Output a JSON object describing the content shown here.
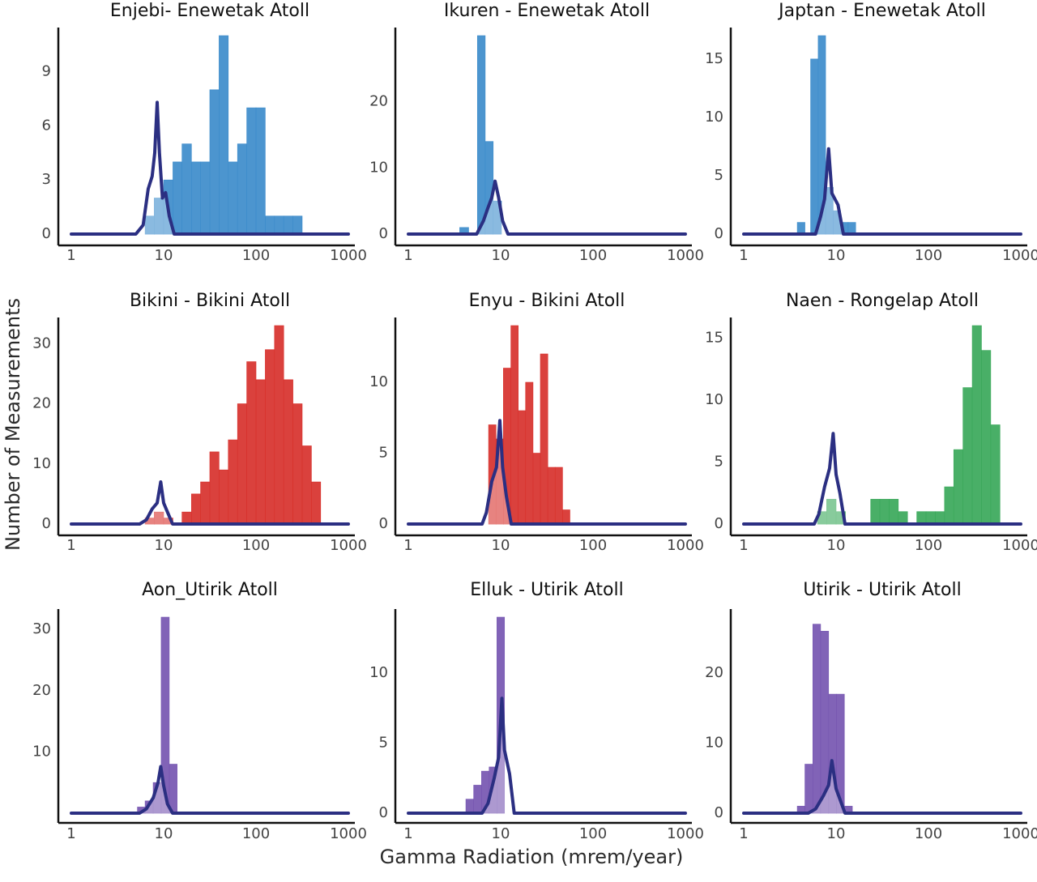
{
  "figure": {
    "ylabel": "Number of Measurements",
    "xlabel": "Gamma Radiation (mrem/year)",
    "line_color": "#2b2f82",
    "palette": {
      "enewetak": "#3d8ccb",
      "bikini": "#d7312c",
      "rongelap": "#3aa85a",
      "utirik": "#7656b1"
    }
  },
  "chart_data": [
    {
      "type": "bar",
      "title": "Enjebi- Enewetak Atoll",
      "color": "#3d8ccb",
      "xscale": "log",
      "xlim": [
        1,
        1000
      ],
      "xticks": [
        "1",
        "10",
        "100",
        "1000"
      ],
      "yticks": [
        0,
        3,
        6,
        9
      ],
      "ylim": [
        0,
        11
      ],
      "bins": [
        [
          6.3,
          7.9,
          1
        ],
        [
          7.9,
          10,
          2
        ],
        [
          10,
          12.6,
          3
        ],
        [
          12.6,
          15.8,
          4
        ],
        [
          15.8,
          20,
          5
        ],
        [
          20,
          25.1,
          4
        ],
        [
          25.1,
          31.6,
          4
        ],
        [
          31.6,
          39.8,
          8
        ],
        [
          39.8,
          50.1,
          11
        ],
        [
          50.1,
          63.1,
          4
        ],
        [
          63.1,
          79.4,
          5
        ],
        [
          79.4,
          100,
          7
        ],
        [
          100,
          125.9,
          7
        ],
        [
          125.9,
          158.5,
          1
        ],
        [
          158.5,
          199.5,
          1
        ],
        [
          199.5,
          251.2,
          1
        ],
        [
          251.2,
          316.2,
          1
        ]
      ],
      "background_curve": [
        [
          1,
          0
        ],
        [
          5,
          0
        ],
        [
          6,
          0.5
        ],
        [
          6.8,
          2.5
        ],
        [
          7.5,
          3.2
        ],
        [
          8,
          4.5
        ],
        [
          8.5,
          7.3
        ],
        [
          9,
          4.5
        ],
        [
          9.7,
          2
        ],
        [
          10.5,
          2.3
        ],
        [
          11.5,
          1
        ],
        [
          13,
          0
        ],
        [
          1000,
          0
        ]
      ]
    },
    {
      "type": "bar",
      "title": "Ikuren - Enewetak Atoll",
      "color": "#3d8ccb",
      "xscale": "log",
      "xlim": [
        1,
        1000
      ],
      "xticks": [
        "1",
        "10",
        "100",
        "1000"
      ],
      "yticks": [
        0,
        10,
        20
      ],
      "ylim": [
        0,
        30
      ],
      "bins": [
        [
          3.6,
          4.5,
          1
        ],
        [
          5.6,
          6.8,
          30
        ],
        [
          6.8,
          8.3,
          14
        ],
        [
          8.3,
          10.2,
          5
        ]
      ],
      "background_curve": [
        [
          1,
          0
        ],
        [
          5.5,
          0
        ],
        [
          6.5,
          2
        ],
        [
          7.3,
          4
        ],
        [
          8,
          5.5
        ],
        [
          8.7,
          8
        ],
        [
          9.5,
          5.5
        ],
        [
          10.5,
          2
        ],
        [
          12,
          0
        ],
        [
          1000,
          0
        ]
      ]
    },
    {
      "type": "bar",
      "title": "Japtan - Enewetak Atoll",
      "color": "#3d8ccb",
      "xscale": "log",
      "xlim": [
        1,
        1000
      ],
      "xticks": [
        "1",
        "10",
        "100",
        "1000"
      ],
      "yticks": [
        0,
        5,
        10,
        15
      ],
      "ylim": [
        0,
        17
      ],
      "bins": [
        [
          3.8,
          4.6,
          1
        ],
        [
          5.3,
          6.4,
          15
        ],
        [
          6.4,
          7.7,
          17
        ],
        [
          7.7,
          9.3,
          4
        ],
        [
          9.3,
          11.2,
          2
        ],
        [
          11.2,
          13.5,
          1
        ],
        [
          13.5,
          16.3,
          1
        ]
      ],
      "background_curve": [
        [
          1,
          0
        ],
        [
          6,
          0
        ],
        [
          6.8,
          1.5
        ],
        [
          7.5,
          3
        ],
        [
          8.3,
          7.3
        ],
        [
          9,
          3.5
        ],
        [
          10.5,
          2.5
        ],
        [
          12,
          0
        ],
        [
          1000,
          0
        ]
      ]
    },
    {
      "type": "bar",
      "title": "Bikini - Bikini Atoll",
      "color": "#d7312c",
      "xscale": "log",
      "xlim": [
        1,
        1000
      ],
      "xticks": [
        "1",
        "10",
        "100",
        "1000"
      ],
      "yticks": [
        0,
        10,
        20,
        30
      ],
      "ylim": [
        0,
        33
      ],
      "bins": [
        [
          6.3,
          7.9,
          1
        ],
        [
          7.9,
          10,
          2
        ],
        [
          10,
          12.6,
          1
        ],
        [
          15.8,
          20,
          2
        ],
        [
          20,
          25.1,
          5
        ],
        [
          25.1,
          31.6,
          7
        ],
        [
          31.6,
          39.8,
          12
        ],
        [
          39.8,
          50.1,
          9
        ],
        [
          50.1,
          63.1,
          14
        ],
        [
          63.1,
          79.4,
          20
        ],
        [
          79.4,
          100,
          27
        ],
        [
          100,
          125.9,
          24
        ],
        [
          125.9,
          158.5,
          29
        ],
        [
          158.5,
          199.5,
          33
        ],
        [
          199.5,
          251.2,
          24
        ],
        [
          251.2,
          316.2,
          20
        ],
        [
          316.2,
          398.1,
          13
        ],
        [
          398.1,
          501.2,
          7
        ]
      ],
      "background_curve": [
        [
          1,
          0
        ],
        [
          5.5,
          0
        ],
        [
          6.5,
          0.7
        ],
        [
          7.5,
          2.5
        ],
        [
          8.5,
          3.5
        ],
        [
          9.3,
          7
        ],
        [
          10,
          3.5
        ],
        [
          11,
          2
        ],
        [
          12.5,
          0
        ],
        [
          1000,
          0
        ]
      ]
    },
    {
      "type": "bar",
      "title": "Enyu - Bikini Atoll",
      "color": "#d7312c",
      "xscale": "log",
      "xlim": [
        1,
        1000
      ],
      "xticks": [
        "1",
        "10",
        "100",
        "1000"
      ],
      "yticks": [
        0,
        5,
        10
      ],
      "ylim": [
        0,
        14
      ],
      "bins": [
        [
          7.4,
          8.9,
          7
        ],
        [
          8.9,
          10.7,
          6
        ],
        [
          10.7,
          12.9,
          11
        ],
        [
          12.9,
          15.5,
          14
        ],
        [
          15.5,
          18.6,
          8
        ],
        [
          18.6,
          22.4,
          10
        ],
        [
          22.4,
          26.9,
          5
        ],
        [
          26.9,
          32.4,
          12
        ],
        [
          32.4,
          38.9,
          4
        ],
        [
          38.9,
          46.8,
          4
        ],
        [
          46.8,
          56.2,
          1
        ]
      ],
      "background_curve": [
        [
          1,
          0
        ],
        [
          6.3,
          0
        ],
        [
          7,
          0.8
        ],
        [
          8,
          3
        ],
        [
          9,
          4
        ],
        [
          9.8,
          7.3
        ],
        [
          10.5,
          4
        ],
        [
          11.5,
          2
        ],
        [
          13,
          0
        ],
        [
          1000,
          0
        ]
      ]
    },
    {
      "type": "bar",
      "title": "Naen - Rongelap Atoll",
      "color": "#3aa85a",
      "xscale": "log",
      "xlim": [
        1,
        1000
      ],
      "xticks": [
        "1",
        "10",
        "100",
        "1000"
      ],
      "yticks": [
        0,
        5,
        10,
        15
      ],
      "ylim": [
        0,
        16
      ],
      "bins": [
        [
          6.3,
          7.9,
          1
        ],
        [
          7.9,
          10,
          2
        ],
        [
          10,
          12.6,
          1
        ],
        [
          23.7,
          29.8,
          2
        ],
        [
          29.8,
          37.5,
          2
        ],
        [
          37.5,
          47.2,
          2
        ],
        [
          47.2,
          59.4,
          1
        ],
        [
          74.8,
          94.2,
          1
        ],
        [
          94.2,
          118.6,
          1
        ],
        [
          118.6,
          149.3,
          1
        ],
        [
          149.3,
          188,
          3
        ],
        [
          188,
          236.7,
          6
        ],
        [
          236.7,
          298,
          11
        ],
        [
          298,
          375.2,
          16
        ],
        [
          375.2,
          472.4,
          14
        ],
        [
          472.4,
          594.8,
          8
        ]
      ],
      "background_curve": [
        [
          1,
          0
        ],
        [
          5.8,
          0
        ],
        [
          6.5,
          0.8
        ],
        [
          7.5,
          3
        ],
        [
          8.5,
          4.5
        ],
        [
          9.3,
          7.3
        ],
        [
          10,
          4
        ],
        [
          11,
          2.5
        ],
        [
          12.5,
          0
        ],
        [
          1000,
          0
        ]
      ]
    },
    {
      "type": "bar",
      "title": "Aon_Utirik Atoll",
      "color": "#7656b1",
      "xscale": "log",
      "xlim": [
        1,
        1000
      ],
      "xticks": [
        "1",
        "10",
        "100",
        "1000"
      ],
      "yticks": [
        10,
        20,
        30
      ],
      "ylim": [
        0,
        32
      ],
      "bins": [
        [
          5.2,
          6.3,
          1
        ],
        [
          6.3,
          7.7,
          2
        ],
        [
          7.7,
          9.4,
          5
        ],
        [
          9.4,
          11.5,
          32
        ],
        [
          11.5,
          14,
          8
        ]
      ],
      "background_curve": [
        [
          1,
          0
        ],
        [
          5.5,
          0
        ],
        [
          6.5,
          0.7
        ],
        [
          7.7,
          2.5
        ],
        [
          8.7,
          5
        ],
        [
          9.3,
          7.6
        ],
        [
          10,
          4.5
        ],
        [
          11,
          1.5
        ],
        [
          12.5,
          0
        ],
        [
          1000,
          0
        ]
      ]
    },
    {
      "type": "bar",
      "title": "Elluk - Utirik Atoll",
      "color": "#7656b1",
      "xscale": "log",
      "xlim": [
        1,
        1000
      ],
      "xticks": [
        "1",
        "10",
        "100",
        "1000"
      ],
      "yticks": [
        0,
        5,
        10
      ],
      "ylim": [
        0,
        14
      ],
      "bins": [
        [
          4.2,
          5.1,
          1
        ],
        [
          5.1,
          6.2,
          2
        ],
        [
          6.2,
          7.5,
          3
        ],
        [
          7.5,
          9.1,
          3.3
        ],
        [
          9.1,
          11,
          14
        ]
      ],
      "background_curve": [
        [
          1,
          0
        ],
        [
          6.3,
          0
        ],
        [
          7.3,
          0.7
        ],
        [
          8.5,
          2.5
        ],
        [
          9.5,
          4
        ],
        [
          10.3,
          8.2
        ],
        [
          11,
          4.5
        ],
        [
          12.5,
          2.8
        ],
        [
          14,
          0
        ],
        [
          1000,
          0
        ]
      ]
    },
    {
      "type": "bar",
      "title": "Utirik - Utirik Atoll",
      "color": "#7656b1",
      "xscale": "log",
      "xlim": [
        1,
        1000
      ],
      "xticks": [
        "1",
        "10",
        "100",
        "1000"
      ],
      "yticks": [
        0,
        10,
        20
      ],
      "ylim": [
        0,
        28
      ],
      "bins": [
        [
          3.8,
          4.6,
          1
        ],
        [
          4.6,
          5.6,
          7
        ],
        [
          5.6,
          6.8,
          27
        ],
        [
          6.8,
          8.3,
          26
        ],
        [
          8.3,
          10.1,
          17
        ],
        [
          10.1,
          12.3,
          17
        ],
        [
          12.3,
          15,
          1
        ]
      ],
      "background_curve": [
        [
          1,
          0
        ],
        [
          5,
          0
        ],
        [
          6,
          0.6
        ],
        [
          7.3,
          2.5
        ],
        [
          8.3,
          4
        ],
        [
          9,
          7.5
        ],
        [
          10,
          3.5
        ],
        [
          11,
          2
        ],
        [
          12.5,
          0
        ],
        [
          1000,
          0
        ]
      ]
    }
  ]
}
